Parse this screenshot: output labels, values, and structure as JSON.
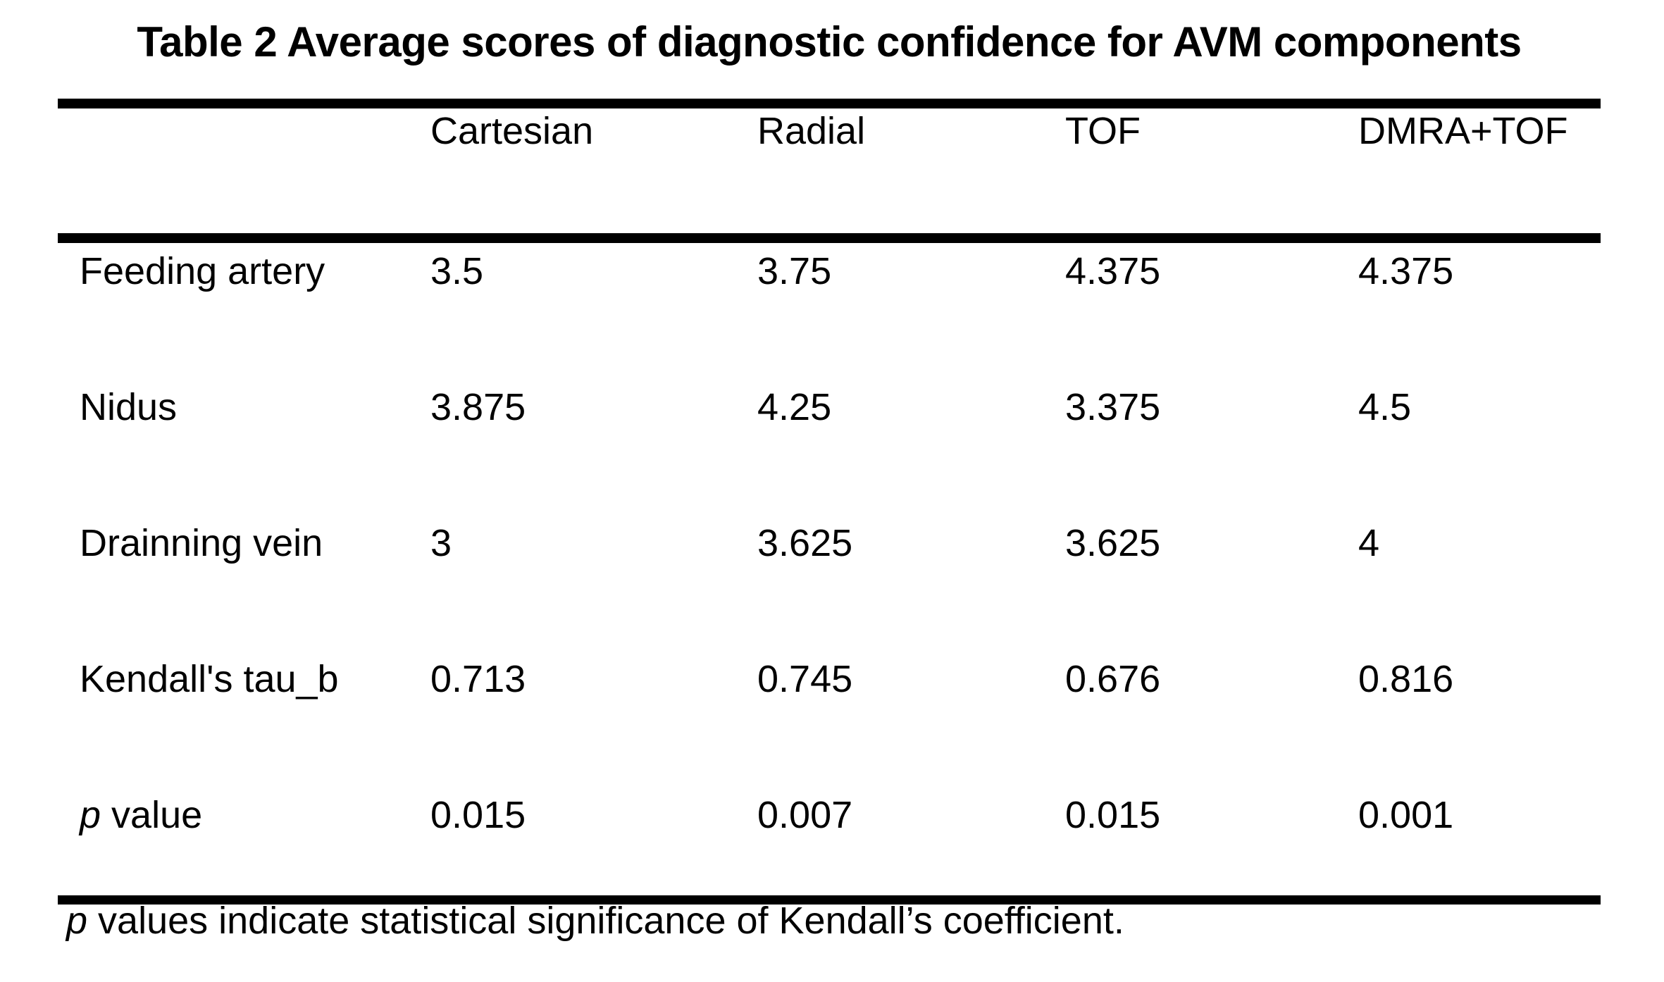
{
  "title": "Table 2 Average scores of diagnostic confidence for AVM components",
  "colors": {
    "background": "#ffffff",
    "text": "#000000",
    "rules": "#000000"
  },
  "table": {
    "columns": [
      "Cartesian",
      "Radial",
      "TOF",
      "DMRA+TOF"
    ],
    "rows": [
      {
        "label": "Feeding artery",
        "values": [
          "3.5",
          "3.75",
          "4.375",
          "4.375"
        ]
      },
      {
        "label": "Nidus",
        "values": [
          "3.875",
          "4.25",
          "3.375",
          "4.5"
        ]
      },
      {
        "label": "Drainning vein",
        "values": [
          "3",
          "3.625",
          "3.625",
          "4"
        ]
      },
      {
        "label": "Kendall's tau_b",
        "values": [
          "0.713",
          "0.745",
          "0.676",
          "0.816"
        ]
      },
      {
        "label_italic": "p",
        "label_rest": " value",
        "values": [
          "0.015",
          "0.007",
          "0.015",
          "0.001"
        ]
      }
    ],
    "footnote": {
      "italic": "p",
      "rest": " values indicate statistical significance of Kendall’s coefficient."
    }
  }
}
